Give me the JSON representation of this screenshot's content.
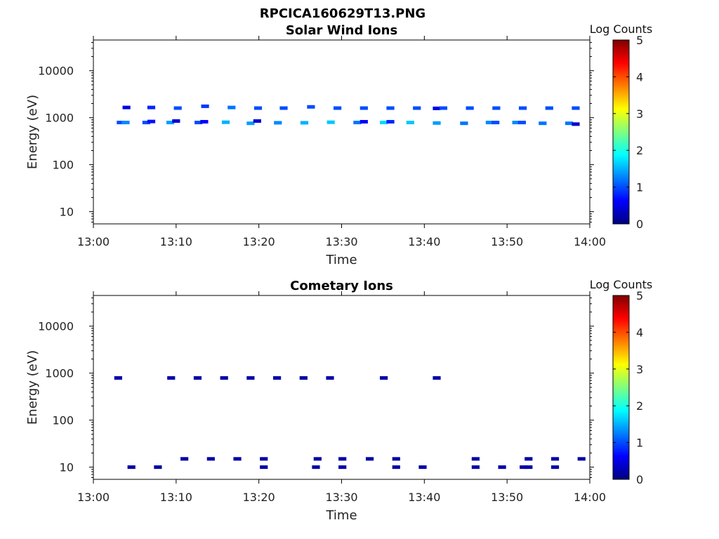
{
  "figure_title": "RPCICA160629T13.PNG",
  "colormap": {
    "name": "jet",
    "stops": [
      "#00007f",
      "#0000ff",
      "#007fff",
      "#00ffff",
      "#7fff7f",
      "#ffff00",
      "#ff7f00",
      "#ff0000",
      "#7f0000"
    ]
  },
  "chart_data": [
    {
      "type": "heatmap",
      "title": "Solar Wind Ions",
      "xlabel": "Time",
      "ylabel": "Energy (eV)",
      "x_ticks": [
        "13:00",
        "13:10",
        "13:20",
        "13:30",
        "13:40",
        "13:50",
        "14:00"
      ],
      "xlim_minutes_after_13_00": [
        0,
        60
      ],
      "y_scale": "log",
      "y_ticks": [
        10,
        100,
        1000,
        10000
      ],
      "y_tick_labels": [
        "10",
        "100",
        "1000",
        "10000"
      ],
      "ylim": [
        5.5,
        45000
      ],
      "colorbar": {
        "label": "Log Counts",
        "range": [
          0,
          5
        ],
        "ticks": [
          "0",
          "1",
          "2",
          "3",
          "4",
          "5"
        ]
      },
      "cells": [
        {
          "t": 3.3,
          "e": 790,
          "c": 1.0
        },
        {
          "t": 3.9,
          "e": 790,
          "c": 1.3
        },
        {
          "t": 4.0,
          "e": 1650,
          "c": 0.5
        },
        {
          "t": 6.4,
          "e": 790,
          "c": 1.0
        },
        {
          "t": 7.0,
          "e": 830,
          "c": 0.7
        },
        {
          "t": 7.0,
          "e": 1650,
          "c": 0.8
        },
        {
          "t": 9.3,
          "e": 790,
          "c": 1.4
        },
        {
          "t": 10.0,
          "e": 850,
          "c": 0.4
        },
        {
          "t": 10.2,
          "e": 1600,
          "c": 1.0
        },
        {
          "t": 12.7,
          "e": 790,
          "c": 1.0
        },
        {
          "t": 13.4,
          "e": 820,
          "c": 0.6
        },
        {
          "t": 13.5,
          "e": 1750,
          "c": 0.9
        },
        {
          "t": 16.0,
          "e": 800,
          "c": 1.5
        },
        {
          "t": 16.7,
          "e": 1650,
          "c": 1.2
        },
        {
          "t": 19.0,
          "e": 760,
          "c": 1.4
        },
        {
          "t": 19.8,
          "e": 850,
          "c": 0.4
        },
        {
          "t": 19.9,
          "e": 1600,
          "c": 1.0
        },
        {
          "t": 22.3,
          "e": 780,
          "c": 1.3
        },
        {
          "t": 23.0,
          "e": 1600,
          "c": 1.0
        },
        {
          "t": 25.5,
          "e": 780,
          "c": 1.5
        },
        {
          "t": 26.3,
          "e": 1700,
          "c": 1.0
        },
        {
          "t": 28.7,
          "e": 800,
          "c": 1.6
        },
        {
          "t": 29.5,
          "e": 1600,
          "c": 1.0
        },
        {
          "t": 31.9,
          "e": 790,
          "c": 1.2
        },
        {
          "t": 32.7,
          "e": 820,
          "c": 0.6
        },
        {
          "t": 32.7,
          "e": 1600,
          "c": 1.0
        },
        {
          "t": 35.1,
          "e": 790,
          "c": 1.7
        },
        {
          "t": 35.9,
          "e": 820,
          "c": 0.8
        },
        {
          "t": 35.9,
          "e": 1600,
          "c": 1.0
        },
        {
          "t": 38.3,
          "e": 790,
          "c": 1.6
        },
        {
          "t": 39.1,
          "e": 1600,
          "c": 1.0
        },
        {
          "t": 41.5,
          "e": 770,
          "c": 1.4
        },
        {
          "t": 41.5,
          "e": 1580,
          "c": 0.5
        },
        {
          "t": 42.3,
          "e": 1600,
          "c": 1.0
        },
        {
          "t": 44.8,
          "e": 760,
          "c": 1.2
        },
        {
          "t": 45.5,
          "e": 1600,
          "c": 1.0
        },
        {
          "t": 47.9,
          "e": 790,
          "c": 1.3
        },
        {
          "t": 48.6,
          "e": 790,
          "c": 1.0
        },
        {
          "t": 48.7,
          "e": 1600,
          "c": 1.0
        },
        {
          "t": 51.1,
          "e": 790,
          "c": 1.3
        },
        {
          "t": 51.8,
          "e": 790,
          "c": 1.0
        },
        {
          "t": 51.9,
          "e": 1600,
          "c": 1.0
        },
        {
          "t": 54.3,
          "e": 760,
          "c": 1.2
        },
        {
          "t": 55.1,
          "e": 1600,
          "c": 1.0
        },
        {
          "t": 57.5,
          "e": 760,
          "c": 1.2
        },
        {
          "t": 58.3,
          "e": 730,
          "c": 0.4
        },
        {
          "t": 58.3,
          "e": 1600,
          "c": 1.0
        }
      ]
    },
    {
      "type": "heatmap",
      "title": "Cometary Ions",
      "xlabel": "Time",
      "ylabel": "Energy (eV)",
      "x_ticks": [
        "13:00",
        "13:10",
        "13:20",
        "13:30",
        "13:40",
        "13:50",
        "14:00"
      ],
      "xlim_minutes_after_13_00": [
        0,
        60
      ],
      "y_scale": "log",
      "y_ticks": [
        10,
        100,
        1000,
        10000
      ],
      "y_tick_labels": [
        "10",
        "100",
        "1000",
        "10000"
      ],
      "ylim": [
        5.5,
        45000
      ],
      "colorbar": {
        "label": "Log Counts",
        "range": [
          0,
          5
        ],
        "ticks": [
          "0",
          "1",
          "2",
          "3",
          "4",
          "5"
        ]
      },
      "cells": [
        {
          "t": 3.0,
          "e": 790,
          "c": 0.2
        },
        {
          "t": 9.4,
          "e": 790,
          "c": 0.2
        },
        {
          "t": 12.6,
          "e": 790,
          "c": 0.2
        },
        {
          "t": 15.8,
          "e": 790,
          "c": 0.2
        },
        {
          "t": 19.0,
          "e": 790,
          "c": 0.2
        },
        {
          "t": 22.2,
          "e": 790,
          "c": 0.2
        },
        {
          "t": 25.4,
          "e": 790,
          "c": 0.2
        },
        {
          "t": 28.6,
          "e": 790,
          "c": 0.2
        },
        {
          "t": 35.1,
          "e": 790,
          "c": 0.2
        },
        {
          "t": 41.5,
          "e": 790,
          "c": 0.2
        },
        {
          "t": 4.6,
          "e": 10,
          "c": 0.2
        },
        {
          "t": 7.8,
          "e": 10,
          "c": 0.2
        },
        {
          "t": 11.0,
          "e": 15,
          "c": 0.2
        },
        {
          "t": 14.2,
          "e": 15,
          "c": 0.2
        },
        {
          "t": 17.4,
          "e": 15,
          "c": 0.2
        },
        {
          "t": 20.6,
          "e": 10,
          "c": 0.2
        },
        {
          "t": 20.6,
          "e": 15,
          "c": 0.2
        },
        {
          "t": 26.9,
          "e": 10,
          "c": 0.2
        },
        {
          "t": 27.1,
          "e": 15,
          "c": 0.2
        },
        {
          "t": 30.1,
          "e": 10,
          "c": 0.2
        },
        {
          "t": 30.1,
          "e": 15,
          "c": 0.2
        },
        {
          "t": 33.4,
          "e": 15,
          "c": 0.2
        },
        {
          "t": 36.6,
          "e": 10,
          "c": 0.2
        },
        {
          "t": 36.6,
          "e": 15,
          "c": 0.2
        },
        {
          "t": 39.8,
          "e": 10,
          "c": 0.2
        },
        {
          "t": 46.2,
          "e": 10,
          "c": 0.2
        },
        {
          "t": 46.2,
          "e": 15,
          "c": 0.2
        },
        {
          "t": 49.4,
          "e": 10,
          "c": 0.2
        },
        {
          "t": 52.0,
          "e": 10,
          "c": 0.2
        },
        {
          "t": 52.6,
          "e": 15,
          "c": 0.2
        },
        {
          "t": 52.6,
          "e": 10,
          "c": 0.2
        },
        {
          "t": 55.8,
          "e": 10,
          "c": 0.2
        },
        {
          "t": 55.8,
          "e": 15,
          "c": 0.2
        },
        {
          "t": 59.0,
          "e": 15,
          "c": 0.2
        }
      ]
    }
  ]
}
